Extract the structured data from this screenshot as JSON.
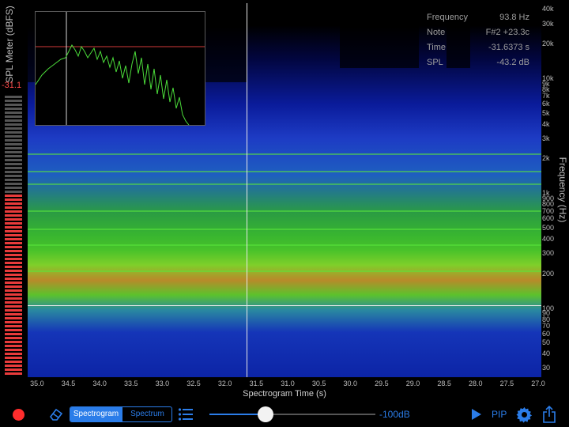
{
  "spl_meter": {
    "title": "SPL Meter (dBFS)",
    "value": "-31.1",
    "level_fraction": 0.65,
    "lit_color": "#e83b3b",
    "dim_color": "#555555"
  },
  "readout": {
    "rows": [
      {
        "key": "Frequency",
        "value": "93.8 Hz"
      },
      {
        "key": "Note",
        "value": "F#2 +23.3c"
      },
      {
        "key": "Time",
        "value": "-31.6373 s"
      },
      {
        "key": "SPL",
        "value": "-43.2 dB"
      }
    ]
  },
  "frequency_axis": {
    "title": "Frequency (Hz)",
    "scale": "log",
    "ticks": [
      "40k",
      "30k",
      "20k",
      "10k",
      "9k",
      "8k",
      "7k",
      "6k",
      "5k",
      "4k",
      "3k",
      "2k",
      "1k",
      "900",
      "800",
      "700",
      "600",
      "500",
      "400",
      "300",
      "200",
      "100",
      "90",
      "80",
      "70",
      "60",
      "50",
      "40",
      "30"
    ]
  },
  "time_axis": {
    "title": "Spectrogram Time (s)",
    "ticks": [
      "35.0",
      "34.5",
      "34.0",
      "33.5",
      "33.0",
      "32.5",
      "32.0",
      "31.5",
      "31.0",
      "30.5",
      "30.0",
      "29.5",
      "29.0",
      "28.5",
      "28.0",
      "27.5",
      "27.0"
    ]
  },
  "cursor": {
    "time_s": 31.6373,
    "frequency_hz": 93.8
  },
  "toolbar": {
    "record_label": "record",
    "tabs": [
      {
        "label": "Spectrogram",
        "selected": true
      },
      {
        "label": "Spectrum",
        "selected": false
      }
    ],
    "slider_label": "-100dB",
    "slider_fraction": 0.34,
    "pip_label": "PIP",
    "accent": "#2b7de9"
  },
  "colors": {
    "background": "#000000",
    "spectrum_line": "#4bdc3a",
    "reference_line": "#d23a3a",
    "record": "#ff2d2d"
  }
}
